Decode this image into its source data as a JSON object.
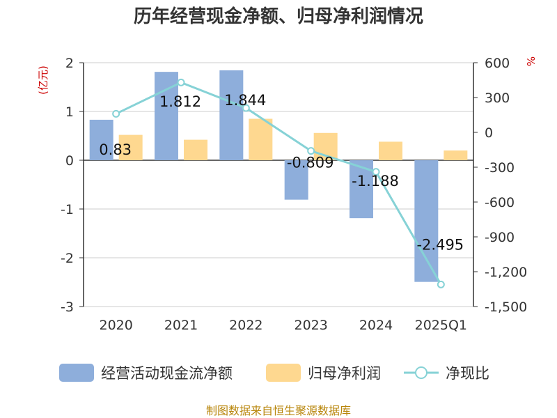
{
  "chart_data": {
    "type": "bar",
    "title": "历年经营现金净额、归母净利润情况",
    "categories": [
      "2020",
      "2021",
      "2022",
      "2023",
      "2024",
      "2025Q1"
    ],
    "series": [
      {
        "name": "经营活动现金流净额",
        "type": "bar",
        "axis": "left",
        "color": "#8eaedb",
        "values": [
          0.83,
          1.812,
          1.844,
          -0.809,
          -1.188,
          -2.495
        ],
        "labels": [
          "0.83",
          "1.812",
          "1.844",
          "-0.809",
          "-1.188",
          "-2.495"
        ]
      },
      {
        "name": "归母净利润",
        "type": "bar",
        "axis": "left",
        "color": "#fed890",
        "values": [
          0.52,
          0.42,
          0.85,
          0.56,
          0.38,
          0.2
        ]
      },
      {
        "name": "净现比",
        "type": "line",
        "axis": "right",
        "color": "#86d2d6",
        "values": [
          160,
          430,
          210,
          -160,
          -340,
          -1310
        ]
      }
    ],
    "y_left": {
      "unit": "(亿元)",
      "min": -3,
      "max": 2,
      "ticks": [
        "2",
        "1",
        "0",
        "-1",
        "-2",
        "-3"
      ]
    },
    "y_right": {
      "unit": "%",
      "min": -1500,
      "max": 600,
      "ticks": [
        "600",
        "300",
        "0",
        "-300",
        "-600",
        "-900",
        "-1,200",
        "-1,500"
      ]
    },
    "legend_position": "bottom",
    "source": "制图数据来自恒生聚源数据库"
  }
}
